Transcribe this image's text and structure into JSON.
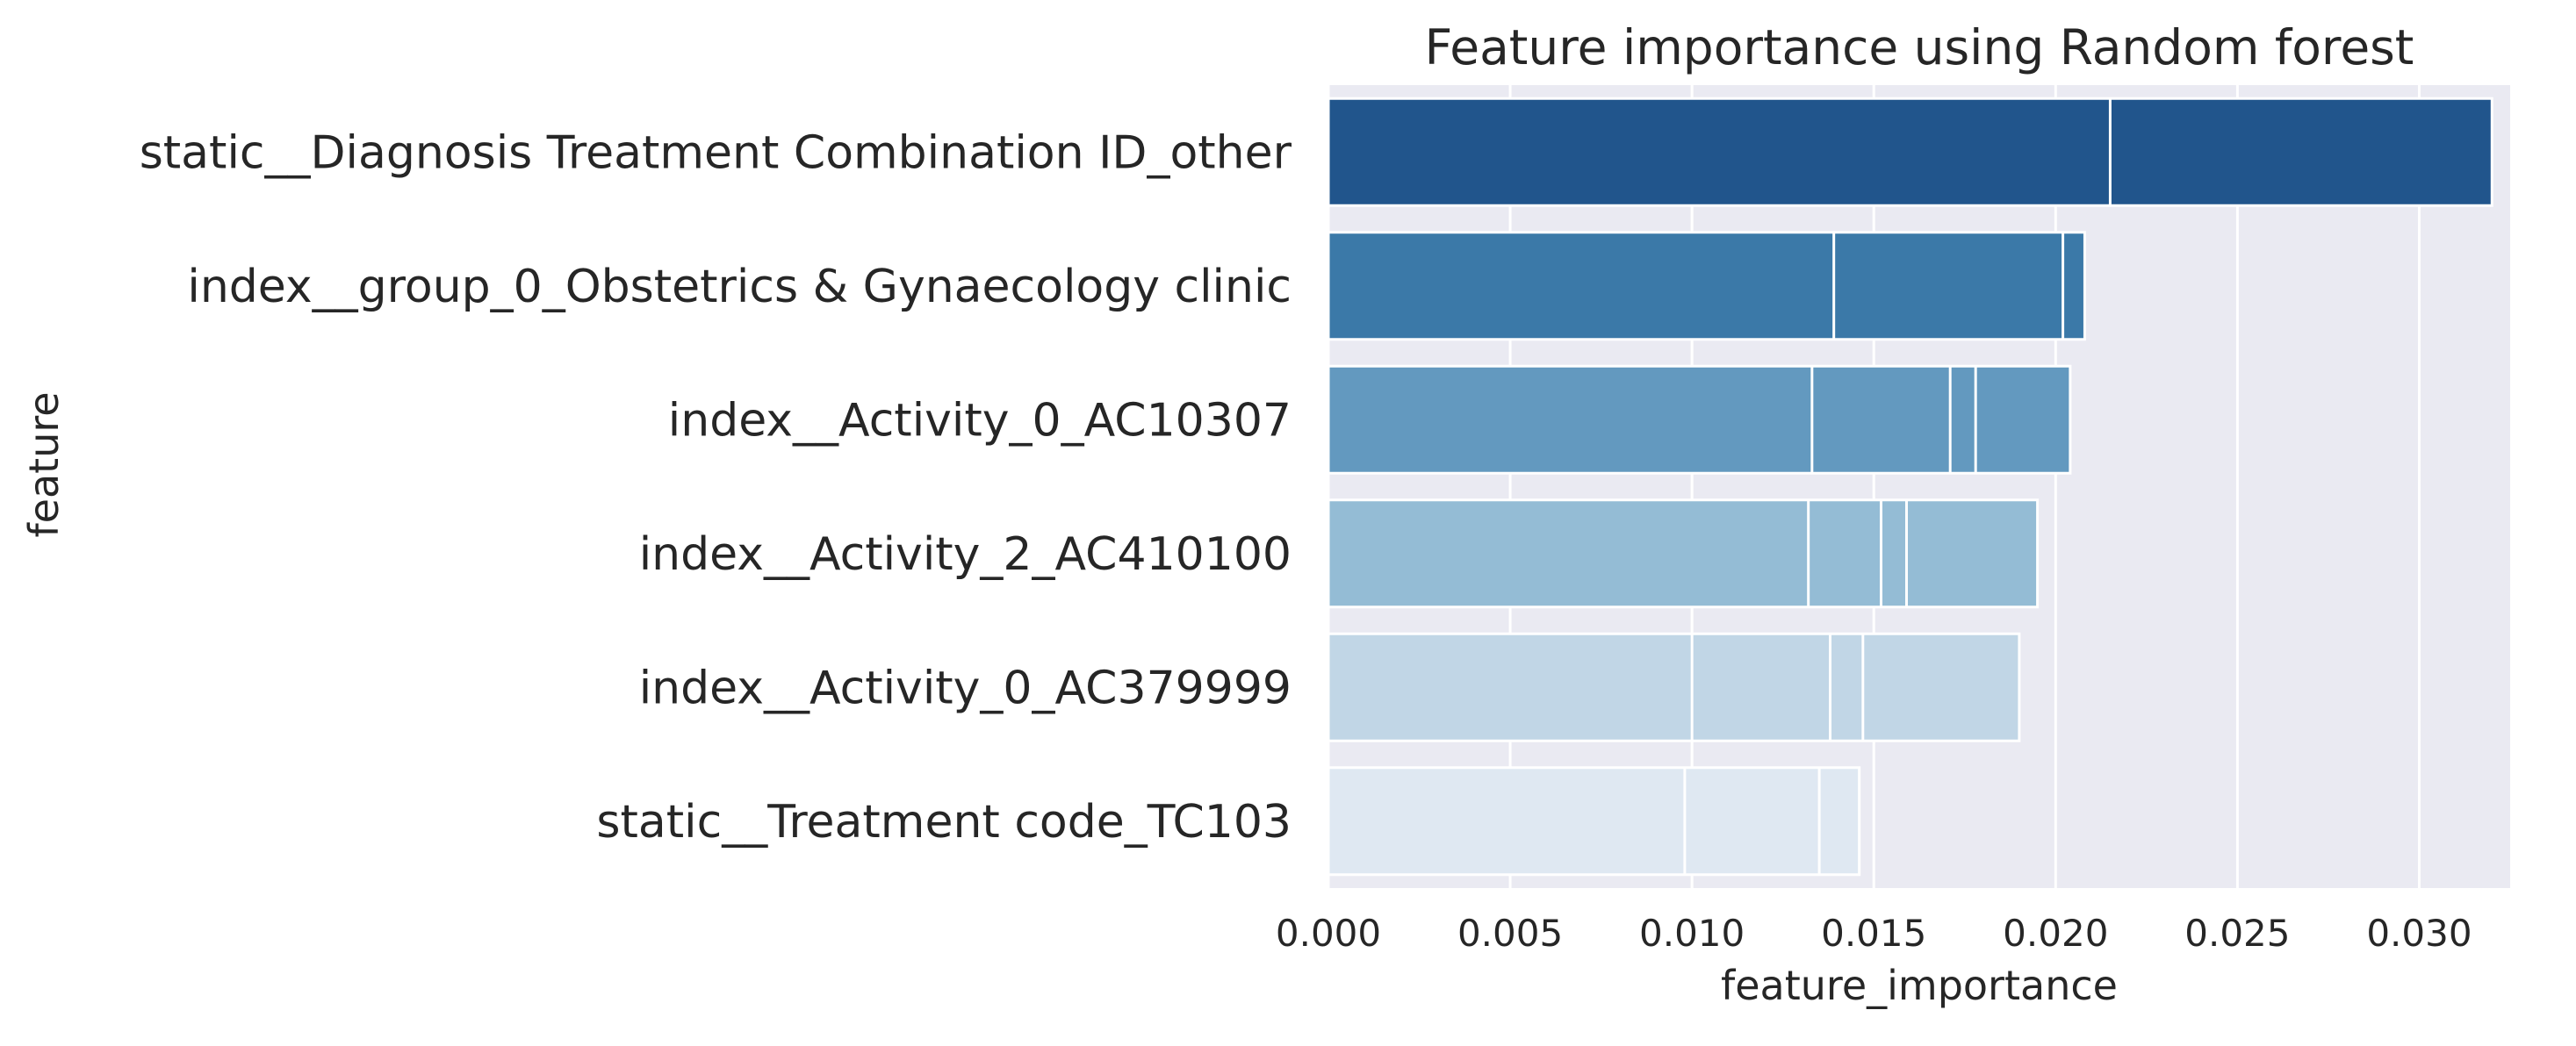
{
  "chart_data": {
    "type": "bar",
    "orientation": "horizontal",
    "title": "Feature importance using Random forest",
    "xlabel": "feature_importance",
    "ylabel": "feature",
    "xlim": [
      0,
      0.0325
    ],
    "xticks": [
      "0.000",
      "0.005",
      "0.010",
      "0.015",
      "0.020",
      "0.025",
      "0.030"
    ],
    "grid": true,
    "categories": [
      "static__Diagnosis Treatment Combination ID_other",
      "index__group_0_Obstetrics & Gynaecology clinic",
      "index__Activity_0_AC10307",
      "index__Activity_2_AC410100",
      "index__Activity_0_AC379999",
      "static__Treatment code_TC103"
    ],
    "values": [
      0.032,
      0.0208,
      0.0204,
      0.0195,
      0.019,
      0.0146
    ],
    "overlaid_values": [
      [
        0.0215
      ],
      [
        0.0139,
        0.0202
      ],
      [
        0.0133,
        0.0171,
        0.0178
      ],
      [
        0.0132,
        0.0152,
        0.0159
      ],
      [
        0.01,
        0.0138,
        0.0147
      ],
      [
        0.0098,
        0.0135
      ]
    ],
    "colors": [
      "#21558c",
      "#3b79a8",
      "#6399bf",
      "#94bcd5",
      "#c1d6e6",
      "#dfe8f2"
    ],
    "plot_background": "#eaeaf2",
    "grid_color": "#ffffff"
  }
}
